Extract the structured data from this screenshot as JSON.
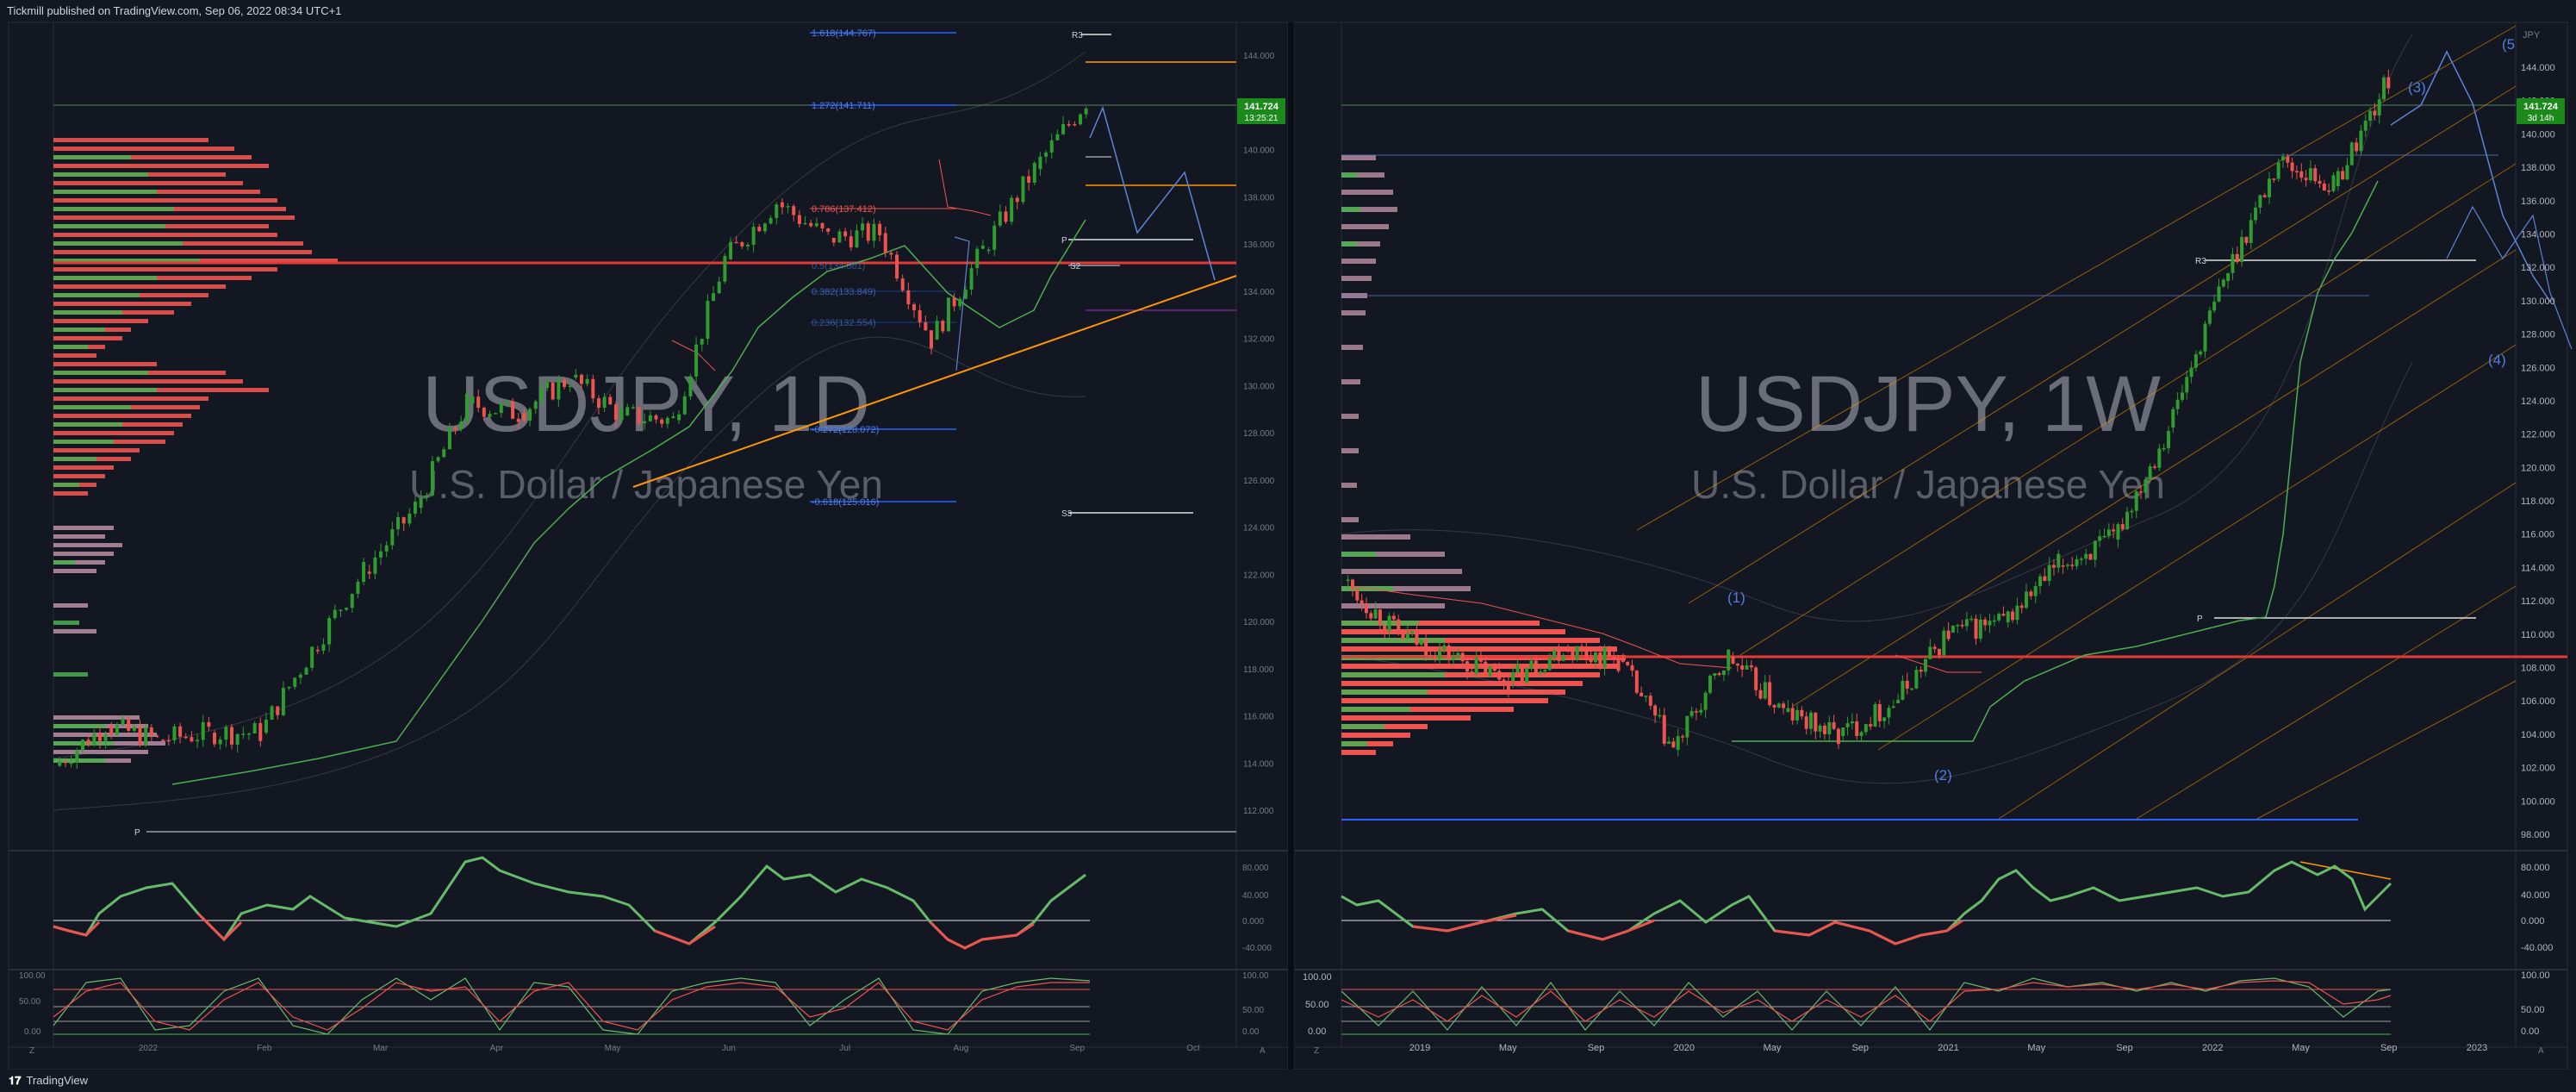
{
  "header": {
    "text": "Tickmill published on TradingView.com, Sep 06, 2022 08:34 UTC+1"
  },
  "footer": {
    "brand": "TradingView"
  },
  "colors": {
    "bg": "#131722",
    "pane": "#131722",
    "up": "#26a69a",
    "upGreen": "#2e9c2e",
    "down": "#ef5350",
    "grid": "#1e222d"
  },
  "left": {
    "watermark_symbol": "USDJPY, 1D",
    "watermark_name": "U.S. Dollar / Japanese Yen",
    "price_label": "141.724",
    "price_label_sub": "13:25:21",
    "y_ticks": [
      "144.000",
      "142.000",
      "140.000",
      "138.000",
      "136.000",
      "134.000",
      "132.000",
      "130.000",
      "128.000",
      "126.000",
      "124.000",
      "122.000",
      "120.000",
      "118.000",
      "116.000",
      "114.000",
      "112.000"
    ],
    "x_ticks": [
      "2022",
      "Feb",
      "Mar",
      "Apr",
      "May",
      "Jun",
      "Jul",
      "Aug",
      "Sep",
      "Oct"
    ],
    "fib_labels": [
      "1.618(144.767)",
      "1.272(141.711)",
      "0.786(137.412)",
      "0.5(134.881)",
      "0.382(133.849)",
      "0.236(132.554)",
      "-0.272(128.072)",
      "-0.618(125.016)"
    ],
    "pivot_labels": {
      "r3": "R3",
      "p": "P",
      "s2": "S2",
      "s3": "S3",
      "p_low": "P"
    },
    "rsi_ticks": [
      "80.000",
      "40.000",
      "0.000",
      "-40.000"
    ],
    "stoch_ticks": [
      "100.00",
      "50.00",
      "0.00"
    ],
    "z": "Z",
    "a": "A"
  },
  "right": {
    "watermark_symbol": "USDJPY, 1W",
    "watermark_name": "U.S. Dollar / Japanese Yen",
    "currency": "JPY",
    "price_label": "141.724",
    "price_label_sub": "3d 14h",
    "y_ticks": [
      "144.000",
      "142.000",
      "140.000",
      "138.000",
      "136.000",
      "134.000",
      "132.000",
      "130.000",
      "128.000",
      "126.000",
      "124.000",
      "122.000",
      "120.000",
      "118.000",
      "116.000",
      "114.000",
      "112.000",
      "110.000",
      "108.000",
      "106.000",
      "104.000",
      "102.000",
      "100.000",
      "98.000"
    ],
    "x_ticks": [
      "2019",
      "May",
      "Sep",
      "2020",
      "May",
      "Sep",
      "2021",
      "May",
      "Sep",
      "2022",
      "May",
      "Sep",
      "2023"
    ],
    "wave_labels": [
      "(1)",
      "(2)",
      "(3)",
      "(4)",
      "(5"
    ],
    "pivot_labels": {
      "r3": "R3",
      "p": "P"
    },
    "rsi_ticks": [
      "80.000",
      "40.000",
      "0.000",
      "-40.000"
    ],
    "stoch_ticks": [
      "100.00",
      "50.00",
      "0.00"
    ],
    "z": "Z",
    "a": "A"
  },
  "chart_data": [
    {
      "type": "candlestick",
      "title": "USDJPY, 1D",
      "ylim": [
        111,
        145
      ],
      "x_range": [
        "2022-01",
        "2022-10"
      ],
      "series": [
        {
          "name": "USDJPY",
          "values": [
            [
              114.5,
              113.6
            ],
            [
              115.6,
              115.3
            ],
            [
              115.2,
              114.7
            ],
            [
              115.5,
              115.0
            ],
            [
              115.3,
              115.0
            ],
            [
              117.8,
              118.5
            ],
            [
              118.5,
              121.8
            ],
            [
              122.5,
              124.5
            ],
            [
              126.8,
              128.9
            ],
            [
              129.8,
              128.5
            ],
            [
              127.4,
              130.0
            ],
            [
              130.8,
              128.4
            ],
            [
              127.5,
              128.2
            ],
            [
              133.2,
              135.0
            ],
            [
              136.8,
              137.4
            ],
            [
              136.5,
              135.9
            ],
            [
              138.5,
              136.1
            ],
            [
              133.5,
              131.6
            ],
            [
              133.2,
              135.4
            ],
            [
              136.8,
              138.8
            ],
            [
              139.2,
              141.7
            ]
          ]
        }
      ],
      "fib_levels": [
        {
          "label": "1.618",
          "value": 144.767
        },
        {
          "label": "1.272",
          "value": 141.711
        },
        {
          "label": "0.786",
          "value": 137.412
        },
        {
          "label": "0.5",
          "value": 134.881
        },
        {
          "label": "0.382",
          "value": 133.849
        },
        {
          "label": "0.236",
          "value": 132.554
        },
        {
          "label": "-0.272",
          "value": 128.072
        },
        {
          "label": "-0.618",
          "value": 125.016
        }
      ],
      "last_price": 141.724
    },
    {
      "type": "candlestick",
      "title": "USDJPY, 1W",
      "ylim": [
        97,
        145
      ],
      "x_range": [
        "2018-11",
        "2023-02"
      ],
      "series": [
        {
          "name": "USDJPY",
          "values": [
            [
              113.0,
              112.6
            ],
            [
              111.0,
              109.5
            ],
            [
              110.5,
              108.2
            ],
            [
              107.5,
              106.8
            ],
            [
              108.5,
              108.7
            ],
            [
              109.5,
              108.0
            ],
            [
              110.5,
              102.8
            ],
            [
              107.5,
              108.2
            ],
            [
              105.5,
              105.0
            ],
            [
              104.5,
              103.6
            ],
            [
              103.5,
              105.5
            ],
            [
              108.5,
              109.6
            ],
            [
              110.5,
              110.2
            ],
            [
              111.5,
              113.5
            ],
            [
              115.5,
              115.0
            ],
            [
              116.0,
              121.5
            ],
            [
              127.5,
              130.0
            ],
            [
              135.5,
              137.0
            ],
            [
              133.0,
              135.5
            ],
            [
              139.0,
              141.7
            ]
          ]
        }
      ],
      "wave_labels": [
        "(1)",
        "(2)",
        "(3)",
        "(4)",
        "(5"
      ],
      "last_price": 141.724
    }
  ]
}
